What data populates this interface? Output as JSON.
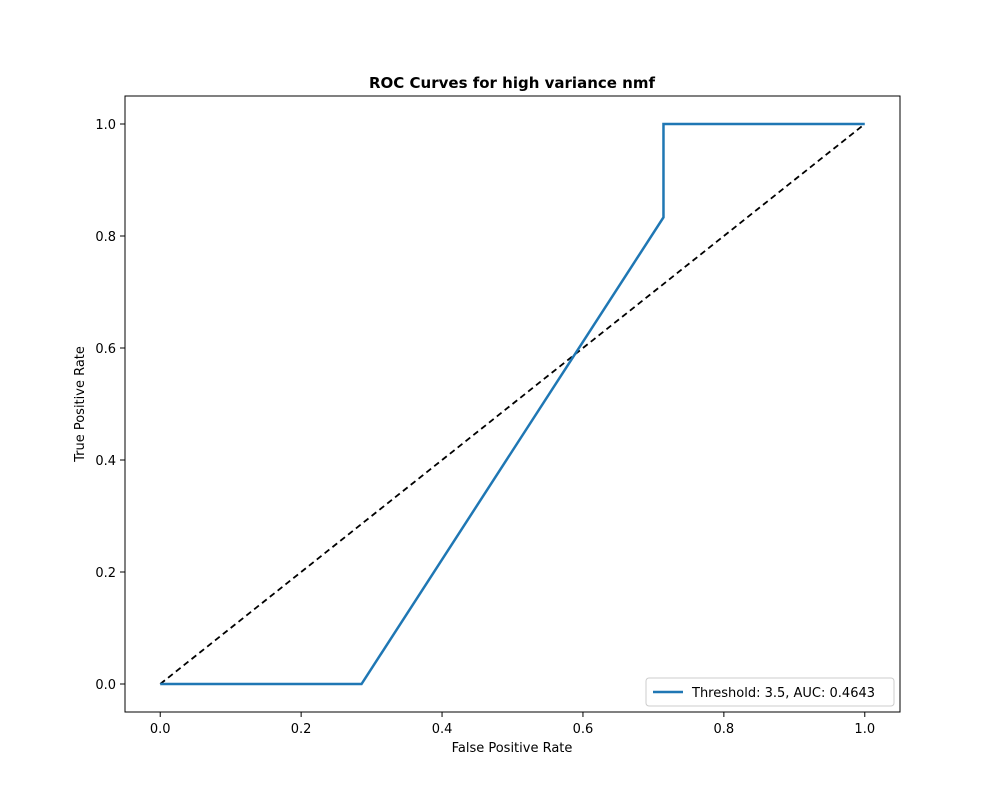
{
  "chart_data": {
    "type": "line",
    "title": "ROC Curves for high variance nmf",
    "xlabel": "False Positive Rate",
    "ylabel": "True Positive Rate",
    "xlim": [
      -0.05,
      1.05
    ],
    "ylim": [
      -0.05,
      1.05
    ],
    "xticks": [
      0.0,
      0.2,
      0.4,
      0.6,
      0.8,
      1.0
    ],
    "xtick_labels": [
      "0.0",
      "0.2",
      "0.4",
      "0.6",
      "0.8",
      "1.0"
    ],
    "yticks": [
      0.0,
      0.2,
      0.4,
      0.6,
      0.8,
      1.0
    ],
    "ytick_labels": [
      "0.0",
      "0.2",
      "0.4",
      "0.6",
      "0.8",
      "1.0"
    ],
    "grid": false,
    "legend_position": "lower-right",
    "series": [
      {
        "name": "Threshold: 3.5, AUC: 0.4643",
        "color": "#1f77b4",
        "style": "solid",
        "x": [
          0.0,
          0.2857,
          0.7143,
          0.7143,
          1.0
        ],
        "y": [
          0.0,
          0.0,
          0.8333,
          1.0,
          1.0
        ]
      },
      {
        "color": "#000000",
        "style": "dashed",
        "x": [
          0.0,
          1.0
        ],
        "y": [
          0.0,
          1.0
        ]
      }
    ]
  }
}
